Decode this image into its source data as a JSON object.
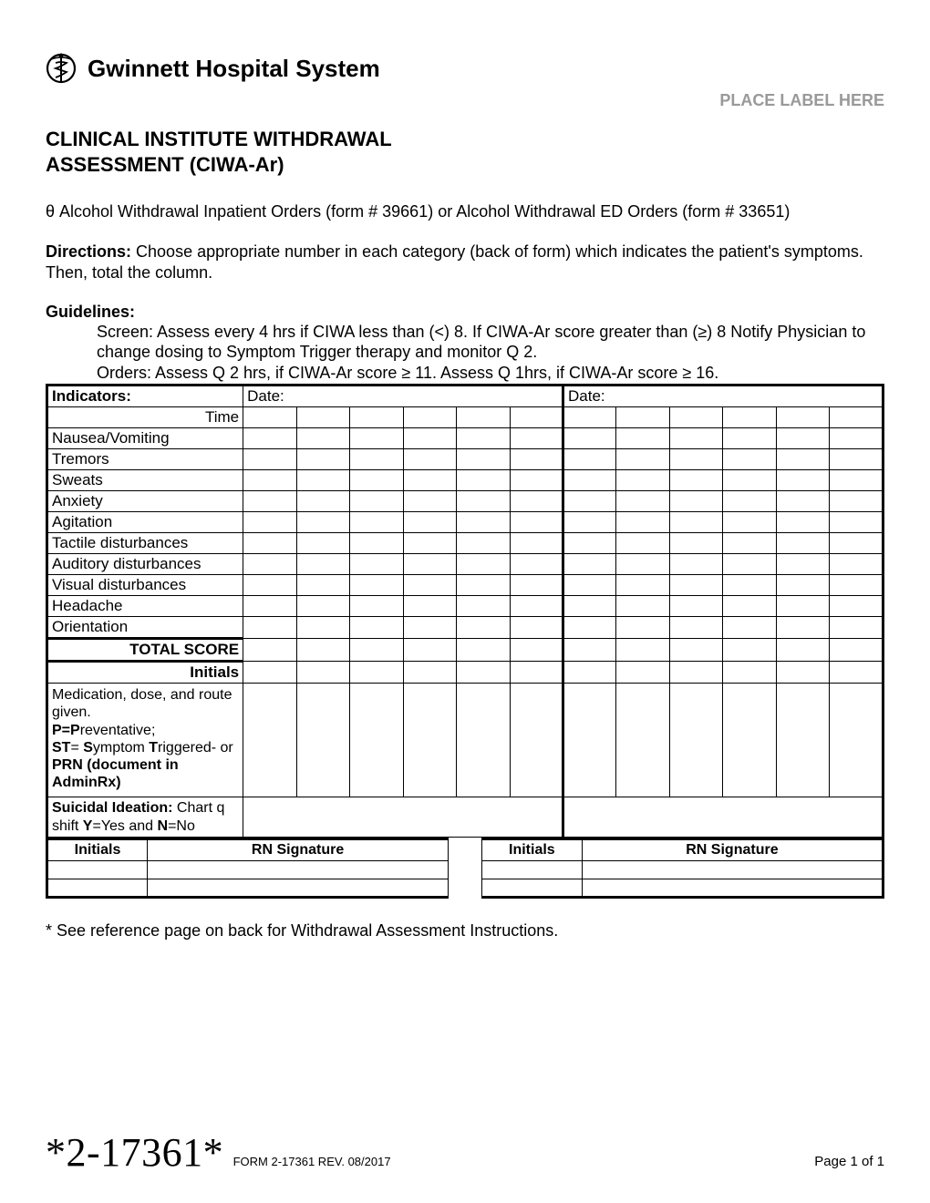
{
  "org_name": "Gwinnett Hospital System",
  "place_label": "PLACE LABEL HERE",
  "form_title_line1": "CLINICAL INSTITUTE WITHDRAWAL",
  "form_title_line2": "ASSESSMENT (CIWA-Ar)",
  "order_refs": "θ Alcohol Withdrawal Inpatient Orders (form # 39661)   or   Alcohol Withdrawal ED Orders (form # 33651)",
  "directions_label": "Directions:",
  "directions_text": "  Choose appropriate number in each category (back of form) which indicates the patient's symptoms. Then, total the column.",
  "guidelines_label": "Guidelines:",
  "guidelines_line1": "Screen:  Assess every 4 hrs if CIWA less than (<) 8.  If CIWA-Ar score greater than (≥) 8 Notify Physician to change dosing to Symptom Trigger therapy and monitor Q 2.",
  "guidelines_line2": "Orders:  Assess Q 2 hrs, if CIWA-Ar score ≥ 11. Assess Q 1hrs, if CIWA-Ar score ≥ 16.",
  "table": {
    "indicators_label": "Indicators:",
    "date_label": "Date:",
    "time_label": "Time",
    "indicator_rows": [
      "Nausea/Vomiting",
      "Tremors",
      "Sweats",
      "Anxiety",
      "Agitation",
      "Tactile disturbances",
      "Auditory disturbances",
      "Visual disturbances",
      "Headache",
      "Orientation"
    ],
    "total_label": "TOTAL SCORE",
    "initials_label": "Initials",
    "medication_html": "Medication, dose, and route given.<br><span class=\"b\">P=P</span>reventative;<br><span class=\"b\">ST</span>= <span class=\"b\">S</span>ymptom <span class=\"b\">T</span>riggered- or <span class=\"b\">PRN (document in AdminRx)</span>",
    "suicidal_html": "<span class=\"b\">Suicidal Ideation:</span> Chart q shift <span class=\"b\">Y</span>=Yes and  <span class=\"b\">N</span>=No",
    "data_columns": 12,
    "column_groups": [
      6,
      6
    ]
  },
  "sig_table": {
    "initials_label": "Initials",
    "rn_label": "RN Signature",
    "blank_rows": 2
  },
  "footnote": "* See reference page on back for Withdrawal Assessment Instructions.",
  "barcode_text": "*2-17361*",
  "form_meta": "FORM 2-17361   REV. 08/2017",
  "page_num": "Page 1 of 1",
  "colors": {
    "text": "#000000",
    "muted": "#999999",
    "border": "#000000",
    "background": "#ffffff"
  },
  "fonts": {
    "body": "Arial",
    "barcode": "Times New Roman"
  }
}
